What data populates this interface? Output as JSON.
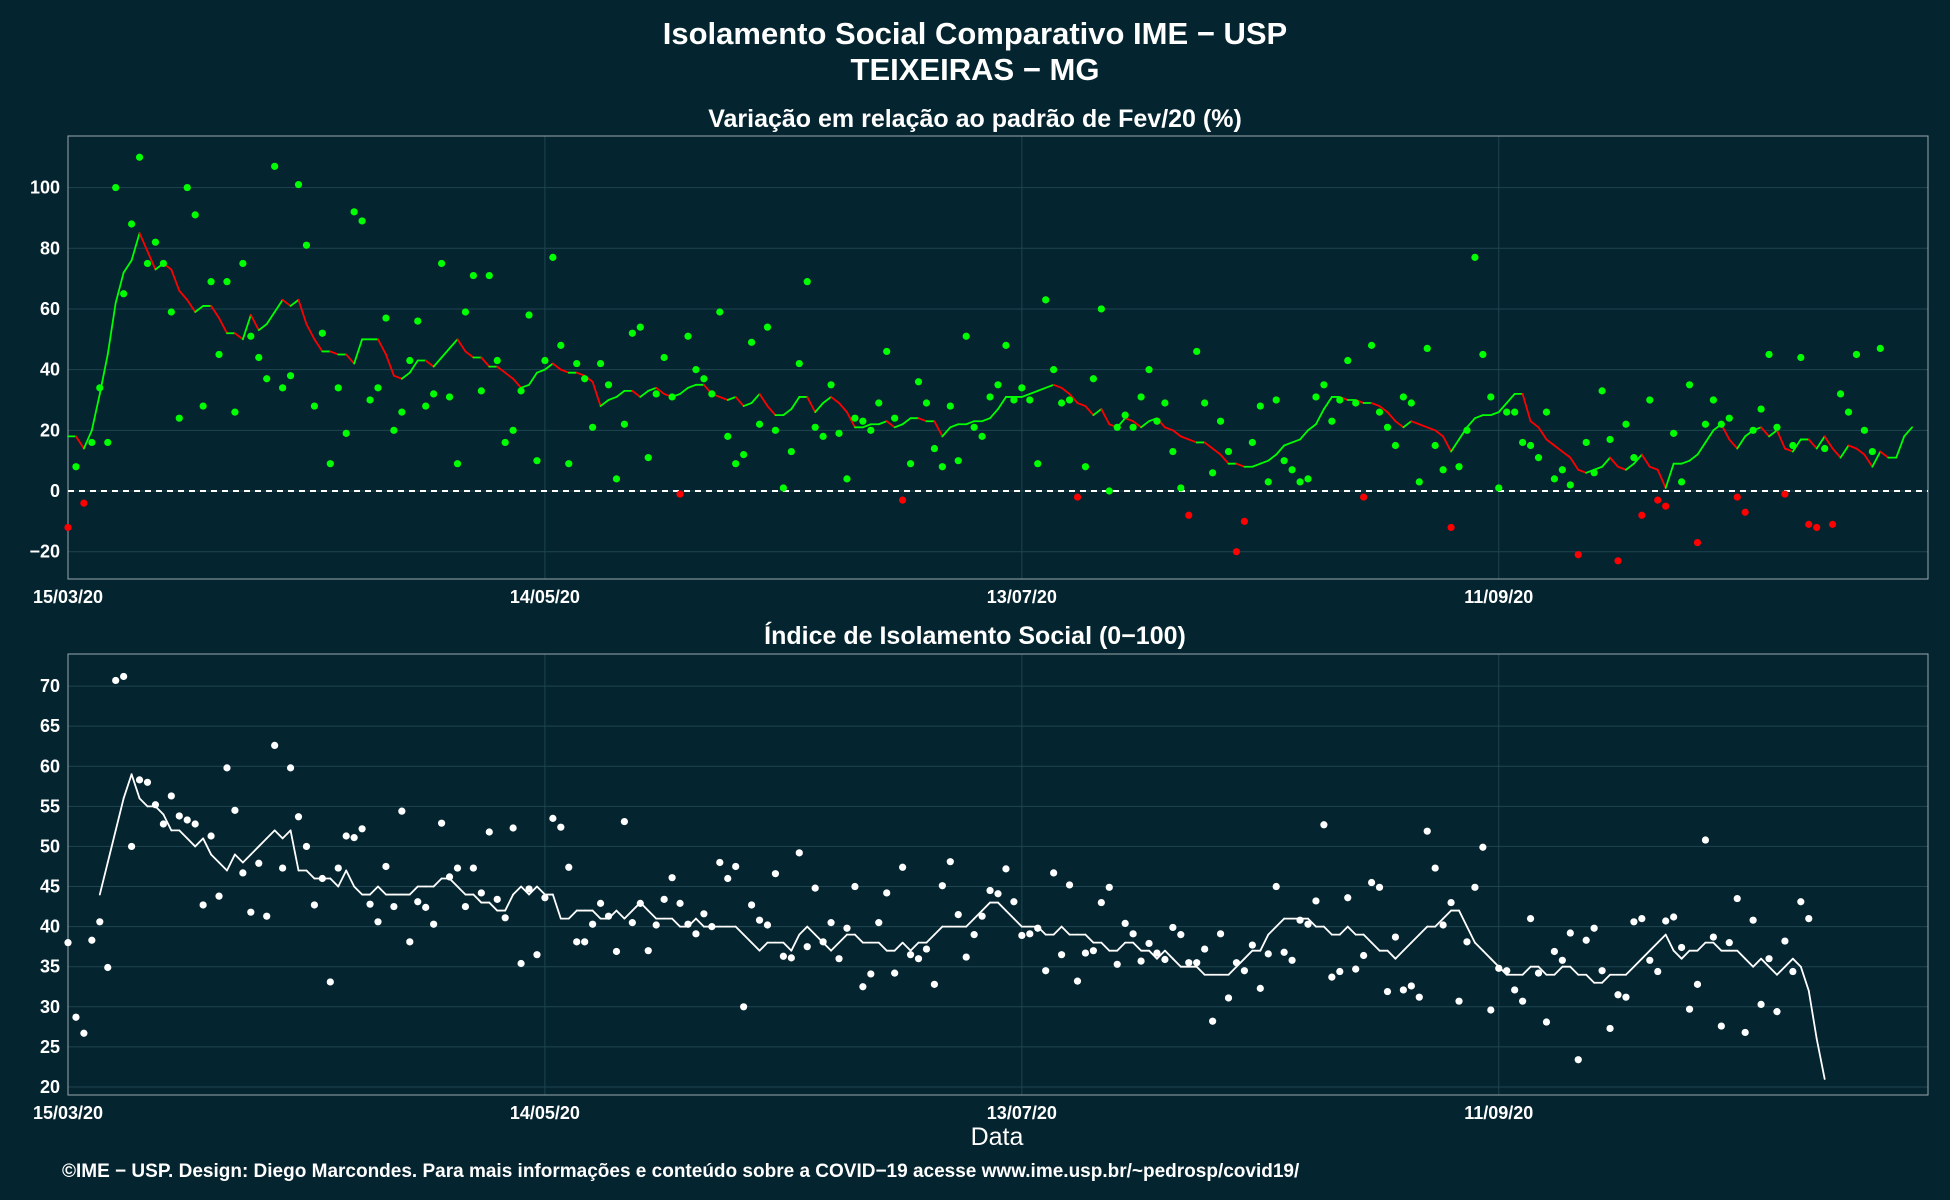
{
  "title": "Isolamento Social Comparativo IME − USP",
  "subtitle": "TEIXEIRAS − MG",
  "xlabel": "Data",
  "footer": "©IME − USP. Design: Diego Marcondes. Para mais informações e conteúdo sobre a COVID−19 acesse www.ime.usp.br/~pedrosp/covid19/",
  "colors": {
    "background": "#04242F",
    "positive": "#00FF00",
    "negative": "#FF0000",
    "index": "#FFFFFF"
  },
  "chart_data": [
    {
      "type": "scatter",
      "title": "Variação em relação ao padrão de Fev/20 (%)",
      "xlabel": "",
      "ylabel": "",
      "x_start": "15/03/20",
      "x_end": "04/11/20",
      "x_ticks": [
        "15/03/20",
        "14/05/20",
        "13/07/20",
        "11/09/20"
      ],
      "y_ticks": [
        -20,
        0,
        20,
        40,
        60,
        80,
        100
      ],
      "ylim": [
        -29,
        117
      ],
      "reference_line": 0,
      "grid": true,
      "series": [
        {
          "kind": "daily_points",
          "values": [
            -12,
            8,
            -4,
            16,
            34,
            16,
            100,
            65,
            88,
            110,
            75,
            82,
            75,
            59,
            24,
            100,
            91,
            28,
            69,
            45,
            69,
            26,
            75,
            51,
            44,
            37,
            107,
            34,
            38,
            101,
            81,
            28,
            52,
            9,
            34,
            19,
            92,
            89,
            30,
            34,
            57,
            20,
            26,
            43,
            56,
            28,
            32,
            75,
            31,
            9,
            59,
            71,
            33,
            71,
            43,
            16,
            20,
            33,
            58,
            10,
            43,
            77,
            48,
            9,
            42,
            37,
            21,
            42,
            35,
            4,
            22,
            52,
            54,
            11,
            32,
            44,
            31,
            -1,
            51,
            40,
            37,
            32,
            59,
            18,
            9,
            12,
            49,
            22,
            54,
            20,
            1,
            13,
            42,
            69,
            21,
            18,
            35,
            19,
            4,
            24,
            23,
            20,
            29,
            46,
            24,
            -3,
            9,
            36,
            29,
            14,
            8,
            28,
            10,
            51,
            21,
            18,
            31,
            35,
            48,
            30,
            34,
            30,
            9,
            63,
            40,
            29,
            30,
            -2,
            8,
            37,
            60,
            0,
            21,
            25,
            21,
            31,
            40,
            23,
            29,
            13,
            1,
            -8,
            46,
            29,
            6,
            23,
            13,
            -20,
            -10,
            16,
            28,
            3,
            30,
            10,
            7,
            3,
            4,
            31,
            35,
            23,
            30,
            43,
            29,
            -2,
            48,
            26,
            21,
            15,
            31,
            29,
            3,
            47,
            15,
            7,
            -12,
            8,
            20,
            77,
            45,
            31,
            1,
            26,
            26,
            16,
            15,
            11,
            26,
            4,
            7,
            2,
            -21,
            16,
            6,
            33,
            17,
            -23,
            22,
            11,
            -8,
            30,
            -3,
            -5,
            19,
            3,
            35,
            -17,
            22,
            30,
            22,
            24,
            -2,
            -7,
            20,
            27,
            45,
            21,
            -1,
            15,
            44,
            -11,
            -12,
            14,
            -11,
            32,
            26,
            45,
            20,
            13,
            47
          ]
        },
        {
          "kind": "moving_average",
          "values": [
            18,
            18,
            14,
            20,
            32,
            45,
            62,
            72,
            76,
            85,
            79,
            73,
            75,
            73,
            66,
            63,
            59,
            61,
            61,
            57,
            52,
            52,
            50,
            58,
            53,
            55,
            59,
            63,
            61,
            63,
            55,
            50,
            46,
            46,
            45,
            45,
            42,
            50,
            50,
            50,
            45,
            38,
            37,
            39,
            43,
            43,
            41,
            44,
            47,
            50,
            46,
            44,
            44,
            41,
            41,
            39,
            37,
            34,
            35,
            39,
            40,
            42,
            40,
            39,
            39,
            38,
            36,
            28,
            30,
            31,
            33,
            33,
            31,
            33,
            34,
            32,
            31,
            32,
            34,
            35,
            35,
            32,
            31,
            30,
            31,
            28,
            29,
            32,
            28,
            25,
            25,
            27,
            31,
            31,
            26,
            29,
            31,
            29,
            26,
            21,
            21,
            22,
            22,
            23,
            21,
            22,
            24,
            24,
            23,
            23,
            18,
            21,
            22,
            22,
            23,
            23,
            24,
            27,
            31,
            31,
            31,
            32,
            33,
            34,
            35,
            34,
            32,
            29,
            28,
            25,
            27,
            22,
            21,
            24,
            23,
            21,
            23,
            24,
            21,
            20,
            18,
            17,
            16,
            16,
            14,
            12,
            9,
            9,
            8,
            8,
            9,
            10,
            12,
            15,
            16,
            17,
            20,
            22,
            27,
            31,
            31,
            30,
            30,
            29,
            29,
            28,
            26,
            23,
            21,
            23,
            22,
            21,
            20,
            18,
            13,
            17,
            21,
            24,
            25,
            25,
            26,
            29,
            32,
            32,
            23,
            21,
            17,
            15,
            13,
            11,
            7,
            6,
            7,
            8,
            11,
            8,
            7,
            9,
            12,
            8,
            7,
            1,
            9,
            9,
            10,
            12,
            16,
            20,
            22,
            17,
            14,
            18,
            20,
            21,
            18,
            20,
            14,
            13,
            17,
            17,
            14,
            18,
            14,
            11,
            15,
            14,
            12,
            8,
            13,
            11,
            11,
            18,
            21
          ]
        }
      ]
    },
    {
      "type": "scatter",
      "title": "Índice de Isolamento Social (0−100)",
      "xlabel": "Data",
      "ylabel": "",
      "x_start": "15/03/20",
      "x_end": "04/11/20",
      "x_ticks": [
        "15/03/20",
        "14/05/20",
        "13/07/20",
        "11/09/20"
      ],
      "y_ticks": [
        20,
        25,
        30,
        35,
        40,
        45,
        50,
        55,
        60,
        65,
        70
      ],
      "ylim": [
        19,
        74
      ],
      "grid": true,
      "series": [
        {
          "kind": "daily_points",
          "values": [
            38,
            28.7,
            26.7,
            38.3,
            40.6,
            34.9,
            70.7,
            71.2,
            50,
            58.3,
            58,
            55.2,
            52.8,
            56.3,
            53.8,
            53.3,
            52.8,
            42.7,
            51.3,
            43.8,
            59.8,
            54.5,
            46.7,
            41.8,
            47.9,
            41.3,
            62.6,
            47.3,
            59.8,
            53.7,
            50,
            42.7,
            46,
            33.1,
            47.3,
            51.3,
            51.1,
            52.2,
            42.8,
            40.6,
            47.5,
            42.5,
            54.4,
            38.1,
            43.1,
            42.4,
            40.3,
            52.9,
            46.2,
            47.3,
            42.5,
            47.3,
            44.2,
            51.8,
            43.4,
            41.1,
            52.3,
            35.4,
            44.7,
            36.5,
            43.6,
            53.5,
            52.4,
            47.4,
            38.1,
            38.1,
            40.3,
            42.9,
            41.3,
            36.9,
            53.1,
            40.5,
            42.9,
            37,
            40.2,
            43.4,
            46.1,
            42.9,
            40.3,
            39.1,
            41.6,
            40,
            48,
            46,
            47.5,
            30,
            42.7,
            40.8,
            40.2,
            46.6,
            36.3,
            36.1,
            49.2,
            37.5,
            44.8,
            38.1,
            40.5,
            36,
            39.8,
            45,
            32.5,
            34.1,
            40.5,
            44.2,
            34.2,
            47.4,
            36.5,
            36,
            37.2,
            32.8,
            45.1,
            48.1,
            41.5,
            36.2,
            39,
            41.3,
            44.5,
            44.1,
            47.2,
            43.1,
            38.9,
            39.1,
            39.8,
            34.5,
            46.7,
            36.5,
            45.2,
            33.2,
            36.7,
            37,
            43,
            44.9,
            35.3,
            40.4,
            39.1,
            35.7,
            37.9,
            36.7,
            35.9,
            39.9,
            39,
            35.5,
            35.5,
            37.2,
            28.2,
            39.1,
            31.1,
            35.5,
            34.5,
            37.7,
            32.3,
            36.6,
            45,
            36.8,
            35.8,
            40.8,
            40.3,
            43.2,
            52.7,
            33.7,
            34.4,
            43.6,
            34.7,
            36.4,
            45.5,
            44.9,
            31.9,
            38.7,
            32.1,
            32.6,
            31.2,
            51.9,
            47.3,
            40.2,
            43,
            30.7,
            38.1,
            44.9,
            49.9,
            29.6,
            34.8,
            34.5,
            32.1,
            30.7,
            41,
            34.2,
            28.1,
            36.9,
            35.8,
            39.2,
            23.4,
            38.3,
            39.8,
            34.5,
            27.3,
            31.5,
            31.2,
            40.6,
            41,
            35.8,
            34.4,
            40.7,
            41.2,
            37.4,
            29.7,
            32.8,
            50.8,
            38.7,
            27.6,
            38,
            43.5,
            26.8,
            40.8,
            30.3,
            36,
            29.4,
            38.2,
            34.4,
            43.1,
            41
          ]
        },
        {
          "kind": "moving_average",
          "values": [
            null,
            null,
            null,
            null,
            44,
            48,
            52,
            56,
            59,
            56,
            55,
            55,
            54,
            52,
            52,
            51,
            50,
            51,
            49,
            48,
            47,
            49,
            48,
            49,
            50,
            51,
            52,
            51,
            52,
            47,
            47,
            46,
            46,
            46,
            45,
            47,
            45,
            44,
            44,
            45,
            44,
            44,
            44,
            44,
            45,
            45,
            45,
            46,
            46,
            45,
            44,
            44,
            43,
            43,
            42,
            42,
            44,
            45,
            44,
            45,
            44,
            44,
            41,
            41,
            42,
            42,
            42,
            41,
            41,
            42,
            41,
            42,
            43,
            42,
            41,
            41,
            41,
            40,
            40,
            41,
            40,
            40,
            40,
            40,
            40,
            39,
            38,
            37,
            38,
            38,
            38,
            37,
            39,
            40,
            39,
            38,
            37,
            38,
            39,
            39,
            38,
            38,
            38,
            37,
            37,
            38,
            37,
            38,
            38,
            39,
            40,
            40,
            40,
            40,
            41,
            42,
            43,
            43,
            42,
            41,
            40,
            40,
            40,
            39,
            39,
            40,
            39,
            39,
            39,
            38,
            38,
            37,
            37,
            38,
            38,
            37,
            37,
            36,
            37,
            36,
            35,
            35,
            35,
            34,
            34,
            34,
            34,
            35,
            36,
            37,
            37,
            39,
            40,
            41,
            41,
            41,
            41,
            40,
            40,
            39,
            39,
            40,
            39,
            39,
            38,
            37,
            37,
            36,
            37,
            38,
            39,
            40,
            40,
            41,
            42,
            42,
            40,
            38,
            37,
            36,
            35,
            34,
            34,
            34,
            35,
            35,
            34,
            34,
            35,
            35,
            34,
            34,
            33,
            33,
            34,
            34,
            34,
            35,
            36,
            37,
            38,
            39,
            37,
            36,
            37,
            37,
            38,
            38,
            37,
            37,
            37,
            36,
            35,
            36,
            35,
            34,
            35,
            36,
            35,
            32,
            26,
            21
          ]
        }
      ]
    }
  ]
}
